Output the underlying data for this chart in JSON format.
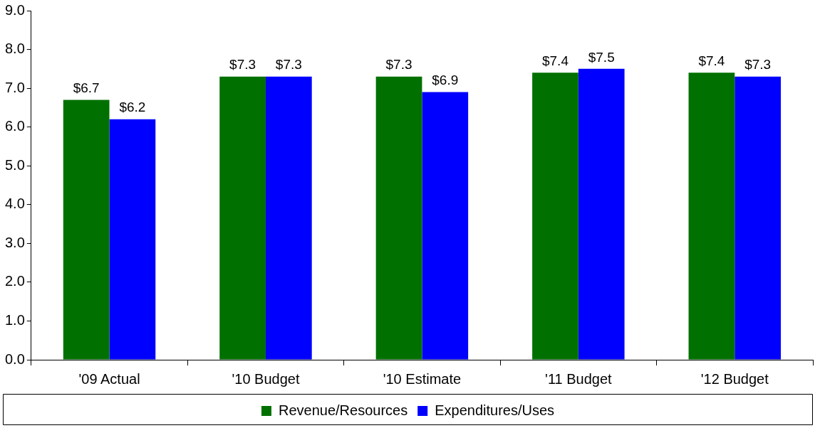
{
  "chart_data": {
    "type": "bar",
    "categories": [
      "'09 Actual",
      "'10 Budget",
      "'10 Estimate",
      "'11 Budget",
      "'12 Budget"
    ],
    "series": [
      {
        "name": "Revenue/Resources",
        "color": "#007000",
        "values": [
          6.7,
          7.3,
          7.3,
          7.4,
          7.4
        ],
        "value_labels": [
          "$6.7",
          "$7.3",
          "$7.3",
          "$7.4",
          "$7.4"
        ]
      },
      {
        "name": "Expenditures/Uses",
        "color": "#0000ff",
        "values": [
          6.2,
          7.3,
          6.9,
          7.5,
          7.3
        ],
        "value_labels": [
          "$6.2",
          "$7.3",
          "$6.9",
          "$7.5",
          "$7.3"
        ]
      }
    ],
    "ylim": [
      0,
      9
    ],
    "yticks": [
      {
        "value": 0,
        "label": "0.0"
      },
      {
        "value": 1,
        "label": "1.0"
      },
      {
        "value": 2,
        "label": "2.0"
      },
      {
        "value": 3,
        "label": "3.0"
      },
      {
        "value": 4,
        "label": "4.0"
      },
      {
        "value": 5,
        "label": "5.0"
      },
      {
        "value": 6,
        "label": "6.0"
      },
      {
        "value": 7,
        "label": "7.0"
      },
      {
        "value": 8,
        "label": "8.0"
      },
      {
        "value": 9,
        "label": "9.0"
      }
    ],
    "grid": false,
    "legend": "bottom"
  }
}
